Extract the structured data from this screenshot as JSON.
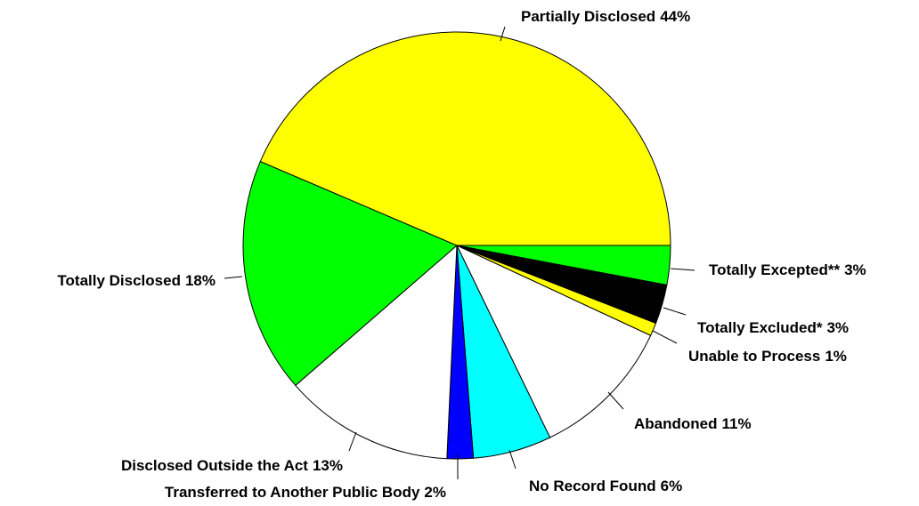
{
  "chart_data": {
    "type": "pie",
    "categories": [
      "Totally Excepted**",
      "Totally Excluded*",
      "Unable to Process",
      "Abandoned",
      "No Record Found",
      "Transferred to Another Public Body",
      "Disclosed Outside the Act",
      "Totally Disclosed",
      "Partially Disclosed"
    ],
    "values": [
      3,
      3,
      1,
      11,
      6,
      2,
      13,
      18,
      44
    ],
    "value_labels": [
      "3%",
      "3%",
      "1%",
      "11%",
      "6%",
      "2%",
      "13%",
      "18%",
      "44%"
    ],
    "colors": [
      "#00ff00",
      "#000000",
      "#ffff00",
      "#ffffff",
      "#00ffff",
      "#0000ff",
      "#ffffff",
      "#00ff00",
      "#ffff00"
    ]
  }
}
